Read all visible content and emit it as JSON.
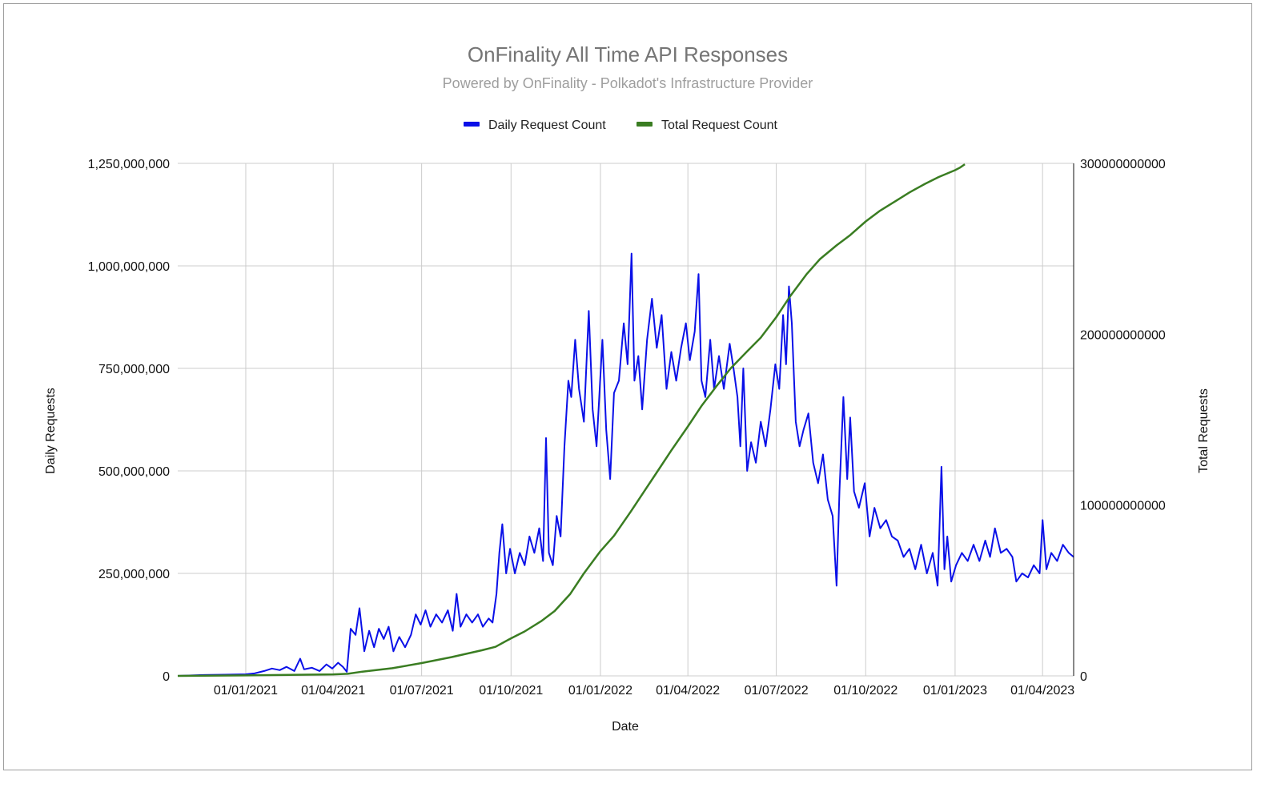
{
  "chart_data": {
    "type": "line",
    "title": "OnFinality All Time API Responses",
    "subtitle": "Powered by OnFinality - Polkadot's Infrastructure Provider",
    "xlabel": "Date",
    "ylabel": "Daily Requests",
    "y2label": "Total Requests",
    "x_range": [
      "2020-10-23",
      "2023-05-03"
    ],
    "x_ticks": [
      {
        "label": "01/01/2021",
        "date": "2021-01-01"
      },
      {
        "label": "01/04/2021",
        "date": "2021-04-01"
      },
      {
        "label": "01/07/2021",
        "date": "2021-07-01"
      },
      {
        "label": "01/10/2021",
        "date": "2021-10-01"
      },
      {
        "label": "01/01/2022",
        "date": "2022-01-01"
      },
      {
        "label": "01/04/2022",
        "date": "2022-04-01"
      },
      {
        "label": "01/07/2022",
        "date": "2022-07-01"
      },
      {
        "label": "01/10/2022",
        "date": "2022-10-01"
      },
      {
        "label": "01/01/2023",
        "date": "2023-01-01"
      },
      {
        "label": "01/04/2023",
        "date": "2023-04-01"
      }
    ],
    "ylim": [
      0,
      1250000000
    ],
    "y_ticks": [
      {
        "label": "0",
        "value": 0
      },
      {
        "label": "250,000,000",
        "value": 250000000
      },
      {
        "label": "500,000,000",
        "value": 500000000
      },
      {
        "label": "750,000,000",
        "value": 750000000
      },
      {
        "label": "1,000,000,000",
        "value": 1000000000
      },
      {
        "label": "1,250,000,000",
        "value": 1250000000
      }
    ],
    "y2lim": [
      0,
      300000000000
    ],
    "y2_ticks": [
      {
        "label": "0",
        "value": 0
      },
      {
        "label": "100000000000",
        "value": 100000000000
      },
      {
        "label": "200000000000",
        "value": 200000000000
      },
      {
        "label": "300000000000",
        "value": 300000000000
      }
    ],
    "grid": true,
    "legend_position": "top-center",
    "series": [
      {
        "name": "Daily Request Count",
        "color": "#0a10e8",
        "axis": "left",
        "points": [
          [
            "2020-10-23",
            0
          ],
          [
            "2020-11-15",
            2000000
          ],
          [
            "2020-12-10",
            3000000
          ],
          [
            "2021-01-01",
            4000000
          ],
          [
            "2021-01-10",
            6000000
          ],
          [
            "2021-01-20",
            12000000
          ],
          [
            "2021-01-28",
            18000000
          ],
          [
            "2021-02-05",
            14000000
          ],
          [
            "2021-02-12",
            22000000
          ],
          [
            "2021-02-20",
            12000000
          ],
          [
            "2021-02-26",
            42000000
          ],
          [
            "2021-03-02",
            16000000
          ],
          [
            "2021-03-10",
            20000000
          ],
          [
            "2021-03-18",
            12000000
          ],
          [
            "2021-03-25",
            28000000
          ],
          [
            "2021-03-31",
            18000000
          ],
          [
            "2021-04-06",
            32000000
          ],
          [
            "2021-04-11",
            22000000
          ],
          [
            "2021-04-15",
            10000000
          ],
          [
            "2021-04-19",
            115000000
          ],
          [
            "2021-04-24",
            100000000
          ],
          [
            "2021-04-28",
            165000000
          ],
          [
            "2021-05-03",
            60000000
          ],
          [
            "2021-05-08",
            110000000
          ],
          [
            "2021-05-13",
            70000000
          ],
          [
            "2021-05-18",
            115000000
          ],
          [
            "2021-05-23",
            90000000
          ],
          [
            "2021-05-28",
            120000000
          ],
          [
            "2021-06-02",
            60000000
          ],
          [
            "2021-06-08",
            95000000
          ],
          [
            "2021-06-14",
            70000000
          ],
          [
            "2021-06-20",
            100000000
          ],
          [
            "2021-06-25",
            150000000
          ],
          [
            "2021-06-30",
            125000000
          ],
          [
            "2021-07-05",
            160000000
          ],
          [
            "2021-07-10",
            120000000
          ],
          [
            "2021-07-16",
            150000000
          ],
          [
            "2021-07-22",
            130000000
          ],
          [
            "2021-07-28",
            160000000
          ],
          [
            "2021-08-02",
            110000000
          ],
          [
            "2021-08-06",
            200000000
          ],
          [
            "2021-08-10",
            120000000
          ],
          [
            "2021-08-16",
            150000000
          ],
          [
            "2021-08-22",
            130000000
          ],
          [
            "2021-08-28",
            150000000
          ],
          [
            "2021-09-02",
            120000000
          ],
          [
            "2021-09-08",
            140000000
          ],
          [
            "2021-09-12",
            130000000
          ],
          [
            "2021-09-16",
            200000000
          ],
          [
            "2021-09-19",
            300000000
          ],
          [
            "2021-09-22",
            370000000
          ],
          [
            "2021-09-26",
            250000000
          ],
          [
            "2021-09-30",
            310000000
          ],
          [
            "2021-10-05",
            250000000
          ],
          [
            "2021-10-10",
            300000000
          ],
          [
            "2021-10-15",
            270000000
          ],
          [
            "2021-10-20",
            340000000
          ],
          [
            "2021-10-25",
            300000000
          ],
          [
            "2021-10-30",
            360000000
          ],
          [
            "2021-11-03",
            280000000
          ],
          [
            "2021-11-06",
            580000000
          ],
          [
            "2021-11-09",
            300000000
          ],
          [
            "2021-11-13",
            270000000
          ],
          [
            "2021-11-17",
            390000000
          ],
          [
            "2021-11-21",
            340000000
          ],
          [
            "2021-11-25",
            560000000
          ],
          [
            "2021-11-29",
            720000000
          ],
          [
            "2021-12-02",
            680000000
          ],
          [
            "2021-12-06",
            820000000
          ],
          [
            "2021-12-10",
            700000000
          ],
          [
            "2021-12-15",
            620000000
          ],
          [
            "2021-12-20",
            890000000
          ],
          [
            "2021-12-24",
            650000000
          ],
          [
            "2021-12-28",
            560000000
          ],
          [
            "2022-01-03",
            820000000
          ],
          [
            "2022-01-07",
            600000000
          ],
          [
            "2022-01-11",
            480000000
          ],
          [
            "2022-01-15",
            690000000
          ],
          [
            "2022-01-20",
            720000000
          ],
          [
            "2022-01-25",
            860000000
          ],
          [
            "2022-01-29",
            760000000
          ],
          [
            "2022-02-02",
            1030000000
          ],
          [
            "2022-02-05",
            720000000
          ],
          [
            "2022-02-09",
            780000000
          ],
          [
            "2022-02-13",
            650000000
          ],
          [
            "2022-02-18",
            820000000
          ],
          [
            "2022-02-23",
            920000000
          ],
          [
            "2022-02-28",
            800000000
          ],
          [
            "2022-03-05",
            880000000
          ],
          [
            "2022-03-10",
            700000000
          ],
          [
            "2022-03-15",
            790000000
          ],
          [
            "2022-03-20",
            720000000
          ],
          [
            "2022-03-25",
            800000000
          ],
          [
            "2022-03-30",
            860000000
          ],
          [
            "2022-04-03",
            770000000
          ],
          [
            "2022-04-08",
            840000000
          ],
          [
            "2022-04-12",
            980000000
          ],
          [
            "2022-04-15",
            720000000
          ],
          [
            "2022-04-19",
            680000000
          ],
          [
            "2022-04-24",
            820000000
          ],
          [
            "2022-04-28",
            700000000
          ],
          [
            "2022-05-03",
            780000000
          ],
          [
            "2022-05-08",
            700000000
          ],
          [
            "2022-05-14",
            810000000
          ],
          [
            "2022-05-18",
            750000000
          ],
          [
            "2022-05-22",
            680000000
          ],
          [
            "2022-05-25",
            560000000
          ],
          [
            "2022-05-28",
            750000000
          ],
          [
            "2022-06-01",
            500000000
          ],
          [
            "2022-06-05",
            570000000
          ],
          [
            "2022-06-10",
            520000000
          ],
          [
            "2022-06-15",
            620000000
          ],
          [
            "2022-06-20",
            560000000
          ],
          [
            "2022-06-25",
            650000000
          ],
          [
            "2022-06-30",
            760000000
          ],
          [
            "2022-07-04",
            700000000
          ],
          [
            "2022-07-08",
            880000000
          ],
          [
            "2022-07-11",
            760000000
          ],
          [
            "2022-07-14",
            950000000
          ],
          [
            "2022-07-17",
            860000000
          ],
          [
            "2022-07-21",
            620000000
          ],
          [
            "2022-07-25",
            560000000
          ],
          [
            "2022-07-29",
            600000000
          ],
          [
            "2022-08-03",
            640000000
          ],
          [
            "2022-08-08",
            520000000
          ],
          [
            "2022-08-13",
            470000000
          ],
          [
            "2022-08-18",
            540000000
          ],
          [
            "2022-08-23",
            430000000
          ],
          [
            "2022-08-28",
            390000000
          ],
          [
            "2022-09-01",
            220000000
          ],
          [
            "2022-09-04",
            450000000
          ],
          [
            "2022-09-08",
            680000000
          ],
          [
            "2022-09-12",
            480000000
          ],
          [
            "2022-09-15",
            630000000
          ],
          [
            "2022-09-19",
            450000000
          ],
          [
            "2022-09-24",
            410000000
          ],
          [
            "2022-09-30",
            470000000
          ],
          [
            "2022-10-05",
            340000000
          ],
          [
            "2022-10-10",
            410000000
          ],
          [
            "2022-10-16",
            360000000
          ],
          [
            "2022-10-22",
            380000000
          ],
          [
            "2022-10-28",
            340000000
          ],
          [
            "2022-11-03",
            330000000
          ],
          [
            "2022-11-09",
            290000000
          ],
          [
            "2022-11-15",
            310000000
          ],
          [
            "2022-11-21",
            260000000
          ],
          [
            "2022-11-27",
            320000000
          ],
          [
            "2022-12-03",
            250000000
          ],
          [
            "2022-12-09",
            300000000
          ],
          [
            "2022-12-14",
            220000000
          ],
          [
            "2022-12-18",
            510000000
          ],
          [
            "2022-12-21",
            260000000
          ],
          [
            "2022-12-24",
            340000000
          ],
          [
            "2022-12-28",
            230000000
          ],
          [
            "2023-01-02",
            270000000
          ],
          [
            "2023-01-08",
            300000000
          ],
          [
            "2023-01-14",
            280000000
          ],
          [
            "2023-01-20",
            320000000
          ],
          [
            "2023-01-26",
            280000000
          ],
          [
            "2023-02-01",
            330000000
          ],
          [
            "2023-02-06",
            290000000
          ],
          [
            "2023-02-11",
            360000000
          ],
          [
            "2023-02-17",
            300000000
          ],
          [
            "2023-02-23",
            310000000
          ],
          [
            "2023-03-01",
            290000000
          ],
          [
            "2023-03-05",
            230000000
          ],
          [
            "2023-03-11",
            250000000
          ],
          [
            "2023-03-17",
            240000000
          ],
          [
            "2023-03-23",
            270000000
          ],
          [
            "2023-03-29",
            250000000
          ],
          [
            "2023-04-01",
            380000000
          ],
          [
            "2023-04-05",
            260000000
          ],
          [
            "2023-04-10",
            300000000
          ],
          [
            "2023-04-16",
            280000000
          ],
          [
            "2023-04-22",
            320000000
          ],
          [
            "2023-04-28",
            300000000
          ],
          [
            "2023-05-03",
            290000000
          ]
        ]
      },
      {
        "name": "Total Request Count",
        "color": "#3a7d22",
        "axis": "right",
        "points": [
          [
            "2020-10-23",
            0
          ],
          [
            "2021-01-01",
            300000000
          ],
          [
            "2021-04-01",
            900000000
          ],
          [
            "2021-04-16",
            1200000000
          ],
          [
            "2021-05-01",
            2500000000
          ],
          [
            "2021-06-01",
            4500000000
          ],
          [
            "2021-07-01",
            7500000000
          ],
          [
            "2021-08-01",
            11000000000
          ],
          [
            "2021-09-01",
            15000000000
          ],
          [
            "2021-09-15",
            17000000000
          ],
          [
            "2021-10-01",
            22000000000
          ],
          [
            "2021-10-15",
            26000000000
          ],
          [
            "2021-11-01",
            32000000000
          ],
          [
            "2021-11-15",
            38000000000
          ],
          [
            "2021-12-01",
            48000000000
          ],
          [
            "2021-12-15",
            60000000000
          ],
          [
            "2022-01-01",
            73000000000
          ],
          [
            "2022-01-15",
            82000000000
          ],
          [
            "2022-02-01",
            96000000000
          ],
          [
            "2022-02-15",
            108000000000
          ],
          [
            "2022-03-01",
            120000000000
          ],
          [
            "2022-03-15",
            132000000000
          ],
          [
            "2022-04-01",
            146000000000
          ],
          [
            "2022-04-15",
            158000000000
          ],
          [
            "2022-05-01",
            170000000000
          ],
          [
            "2022-05-15",
            180000000000
          ],
          [
            "2022-06-01",
            190000000000
          ],
          [
            "2022-06-15",
            198000000000
          ],
          [
            "2022-07-01",
            210000000000
          ],
          [
            "2022-07-15",
            222000000000
          ],
          [
            "2022-08-01",
            235000000000
          ],
          [
            "2022-08-15",
            244000000000
          ],
          [
            "2022-09-01",
            252000000000
          ],
          [
            "2022-09-15",
            258000000000
          ],
          [
            "2022-10-01",
            266000000000
          ],
          [
            "2022-10-15",
            272000000000
          ],
          [
            "2022-11-01",
            278000000000
          ],
          [
            "2022-11-15",
            283000000000
          ],
          [
            "2022-12-01",
            288000000000
          ],
          [
            "2022-12-15",
            292000000000
          ],
          [
            "2023-01-01",
            296000000000
          ],
          [
            "2023-01-06",
            297500000000
          ],
          [
            "2023-01-11",
            299500000000
          ]
        ]
      }
    ]
  }
}
